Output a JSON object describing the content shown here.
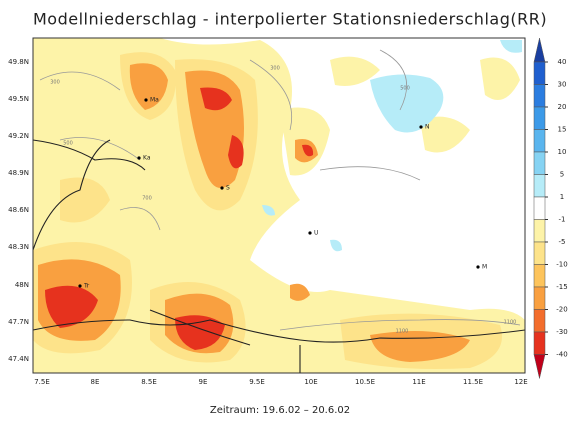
{
  "title": "Modellniederschlag - interpolierter Stationsniederschlag(RR)",
  "lat_ticks": [
    "49.8N",
    "49.5N",
    "49.2N",
    "48.9N",
    "48.6N",
    "48.3N",
    "48N",
    "47.7N",
    "47.4N"
  ],
  "lon_ticks": [
    "7.5E",
    "8E",
    "8.5E",
    "9E",
    "9.5E",
    "10E",
    "10.5E",
    "11E",
    "11.5E",
    "12E"
  ],
  "cities": [
    "Ma",
    "Ka",
    "S",
    "Tr",
    "U",
    "N",
    "M"
  ],
  "contour_labels": [
    "300",
    "500",
    "700",
    "300",
    "500",
    "1100",
    "1100"
  ],
  "colorbar": {
    "levels": [
      40,
      30,
      20,
      15,
      10,
      5,
      1,
      -1,
      -5,
      -10,
      -15,
      -20,
      -30,
      -40
    ],
    "colors": [
      "#1a3fa0",
      "#1f5fcf",
      "#2b7de0",
      "#3c9ae8",
      "#5ab5ee",
      "#86d3f3",
      "#b6ecf8",
      "#ffffff",
      "#fdf3a8",
      "#fde38a",
      "#fdc45c",
      "#f9a040",
      "#f36d2c",
      "#e6321e",
      "#c0001a"
    ]
  },
  "footer": "Zeitraum: 19.6.02 – 20.6.02"
}
